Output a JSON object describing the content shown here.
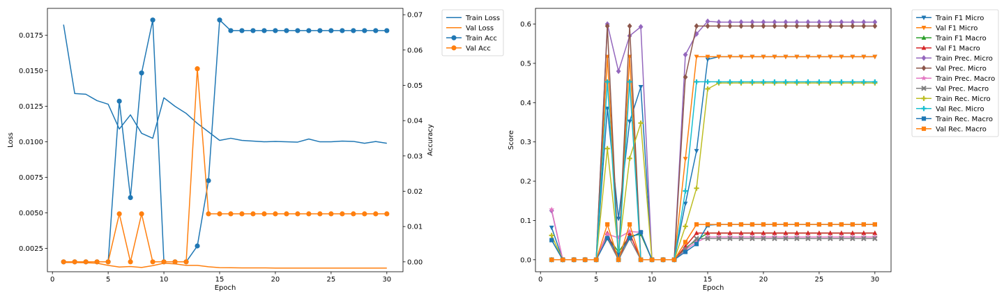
{
  "chart_data": [
    {
      "type": "line",
      "xlabel": "Epoch",
      "ylabel": "Loss",
      "ylabel_right": "Accuracy",
      "xlim": [
        -0.45,
        31.45
      ],
      "ylim": [
        0.00085,
        0.0194
      ],
      "ylim_right": [
        -0.0028,
        0.0718
      ],
      "x_ticks": [
        0,
        5,
        10,
        15,
        20,
        25,
        30
      ],
      "x_tick_labels": [
        "0",
        "5",
        "10",
        "15",
        "20",
        "25",
        "30"
      ],
      "y_ticks": [
        0.0025,
        0.005,
        0.0075,
        0.01,
        0.0125,
        0.015,
        0.0175
      ],
      "y_tick_labels": [
        "0.0025",
        "0.0050",
        "0.0075",
        "0.0100",
        "0.0125",
        "0.0150",
        "0.0175"
      ],
      "y_ticks_right": [
        0.0,
        0.01,
        0.02,
        0.03,
        0.04,
        0.05,
        0.06,
        0.07
      ],
      "y_tick_labels_right": [
        "0.00",
        "0.01",
        "0.02",
        "0.03",
        "0.04",
        "0.05",
        "0.06",
        "0.07"
      ],
      "legend_position": "outside-right",
      "grid": false,
      "x": [
        1,
        2,
        3,
        4,
        5,
        6,
        7,
        8,
        9,
        10,
        11,
        12,
        13,
        14,
        15,
        16,
        17,
        18,
        19,
        20,
        21,
        22,
        23,
        24,
        25,
        26,
        27,
        28,
        29,
        30
      ],
      "series": [
        {
          "name": "Train Loss",
          "axis": "left",
          "color": "#1f77b4",
          "marker": "none",
          "values": [
            0.01825,
            0.0134,
            0.01335,
            0.0129,
            0.01265,
            0.0109,
            0.0119,
            0.0106,
            0.01025,
            0.0131,
            0.0125,
            0.012,
            0.0113,
            0.0107,
            0.0101,
            0.01025,
            0.0101,
            0.01005,
            0.01,
            0.01003,
            0.01,
            0.00998,
            0.0102,
            0.01,
            0.01,
            0.01005,
            0.01003,
            0.0099,
            0.01002,
            0.0099
          ]
        },
        {
          "name": "Val Loss",
          "axis": "left",
          "color": "#ff7f0e",
          "marker": "none",
          "values": [
            0.0015,
            0.0015,
            0.00148,
            0.00145,
            0.0013,
            0.00118,
            0.00122,
            0.00115,
            0.00128,
            0.00145,
            0.0014,
            0.0013,
            0.0013,
            0.0012,
            0.00114,
            0.00113,
            0.00112,
            0.00112,
            0.00112,
            0.00111,
            0.00111,
            0.00111,
            0.00111,
            0.00111,
            0.00111,
            0.00111,
            0.00111,
            0.00111,
            0.00111,
            0.00111
          ]
        },
        {
          "name": "Train Acc",
          "axis": "right",
          "color": "#1f77b4",
          "marker": "circle",
          "values": [
            0,
            0,
            0,
            0,
            0,
            0.0455,
            0.0182,
            0.0535,
            0.0685,
            0,
            0,
            0,
            0.0045,
            0.023,
            0.0685,
            0.0655,
            0.0655,
            0.0655,
            0.0655,
            0.0655,
            0.0655,
            0.0655,
            0.0655,
            0.0655,
            0.0655,
            0.0655,
            0.0655,
            0.0655,
            0.0655,
            0.0655
          ]
        },
        {
          "name": "Val Acc",
          "axis": "right",
          "color": "#ff7f0e",
          "marker": "circle",
          "values": [
            0,
            0,
            0,
            0,
            0,
            0.0136,
            0,
            0.0136,
            0,
            0,
            0,
            0,
            0.0547,
            0.0136,
            0.0136,
            0.0136,
            0.0136,
            0.0136,
            0.0136,
            0.0136,
            0.0136,
            0.0136,
            0.0136,
            0.0136,
            0.0136,
            0.0136,
            0.0136,
            0.0136,
            0.0136,
            0.0136
          ]
        }
      ]
    },
    {
      "type": "line",
      "xlabel": "Epoch",
      "ylabel": "Score",
      "xlim": [
        -0.45,
        31.45
      ],
      "ylim": [
        -0.0305,
        0.64
      ],
      "x_ticks": [
        0,
        5,
        10,
        15,
        20,
        25,
        30
      ],
      "x_tick_labels": [
        "0",
        "5",
        "10",
        "15",
        "20",
        "25",
        "30"
      ],
      "y_ticks": [
        0.0,
        0.1,
        0.2,
        0.3,
        0.4,
        0.5,
        0.6
      ],
      "y_tick_labels": [
        "0.0",
        "0.1",
        "0.2",
        "0.3",
        "0.4",
        "0.5",
        "0.6"
      ],
      "legend_position": "outside-right",
      "grid": false,
      "x": [
        1,
        2,
        3,
        4,
        5,
        6,
        7,
        8,
        9,
        10,
        11,
        12,
        13,
        14,
        15,
        16,
        17,
        18,
        19,
        20,
        21,
        22,
        23,
        24,
        25,
        26,
        27,
        28,
        29,
        30
      ],
      "series": [
        {
          "name": "Train F1 Micro",
          "color": "#1f77b4",
          "marker": "triangle-down",
          "values": [
            0.082,
            0,
            0,
            0,
            0,
            0.385,
            0.105,
            0.352,
            0.44,
            0,
            0,
            0,
            0.143,
            0.277,
            0.51,
            0.517,
            0.517,
            0.517,
            0.517,
            0.517,
            0.517,
            0.517,
            0.517,
            0.517,
            0.517,
            0.517,
            0.517,
            0.517,
            0.517,
            0.517
          ]
        },
        {
          "name": "Val F1 Micro",
          "color": "#ff7f0e",
          "marker": "triangle-down",
          "values": [
            0,
            0,
            0,
            0,
            0,
            0.517,
            0,
            0.517,
            0,
            0,
            0,
            0,
            0.257,
            0.517,
            0.517,
            0.517,
            0.517,
            0.517,
            0.517,
            0.517,
            0.517,
            0.517,
            0.517,
            0.517,
            0.517,
            0.517,
            0.517,
            0.517,
            0.517,
            0.517
          ]
        },
        {
          "name": "Train F1 Macro",
          "color": "#2ca02c",
          "marker": "triangle-up",
          "values": [
            0.05,
            0,
            0,
            0,
            0,
            0.06,
            0.02,
            0.06,
            0.065,
            0,
            0,
            0,
            0.03,
            0.05,
            0.068,
            0.068,
            0.068,
            0.068,
            0.068,
            0.068,
            0.068,
            0.068,
            0.068,
            0.068,
            0.068,
            0.068,
            0.068,
            0.068,
            0.068,
            0.068
          ]
        },
        {
          "name": "Val F1 Macro",
          "color": "#d62728",
          "marker": "triangle-up",
          "values": [
            0,
            0,
            0,
            0,
            0,
            0.068,
            0,
            0.068,
            0,
            0,
            0,
            0,
            0.034,
            0.068,
            0.068,
            0.068,
            0.068,
            0.068,
            0.068,
            0.068,
            0.068,
            0.068,
            0.068,
            0.068,
            0.068,
            0.068,
            0.068,
            0.068,
            0.068,
            0.068
          ]
        },
        {
          "name": "Train Prec. Micro",
          "color": "#9467bd",
          "marker": "diamond",
          "values": [
            0.125,
            0,
            0,
            0,
            0,
            0.6,
            0.48,
            0.57,
            0.593,
            0,
            0,
            0,
            0.522,
            0.575,
            0.607,
            0.605,
            0.605,
            0.605,
            0.605,
            0.605,
            0.605,
            0.605,
            0.605,
            0.605,
            0.605,
            0.605,
            0.605,
            0.605,
            0.605,
            0.605
          ]
        },
        {
          "name": "Val Prec. Micro",
          "color": "#8c564b",
          "marker": "diamond",
          "values": [
            0,
            0,
            0,
            0,
            0,
            0.595,
            0,
            0.595,
            0,
            0,
            0,
            0,
            0.465,
            0.595,
            0.595,
            0.595,
            0.595,
            0.595,
            0.595,
            0.595,
            0.595,
            0.595,
            0.595,
            0.595,
            0.595,
            0.595,
            0.595,
            0.595,
            0.595,
            0.595
          ]
        },
        {
          "name": "Train Prec. Macro",
          "color": "#e377c2",
          "marker": "star",
          "values": [
            0.128,
            0,
            0,
            0,
            0,
            0.065,
            0.056,
            0.072,
            0.07,
            0,
            0,
            0,
            0.025,
            0.045,
            0.058,
            0.058,
            0.058,
            0.058,
            0.058,
            0.058,
            0.058,
            0.058,
            0.058,
            0.058,
            0.058,
            0.058,
            0.058,
            0.058,
            0.058,
            0.058
          ]
        },
        {
          "name": "Val Prec. Macro",
          "color": "#7f7f7f",
          "marker": "x",
          "values": [
            0,
            0,
            0,
            0,
            0,
            0.054,
            0,
            0.054,
            0,
            0,
            0,
            0,
            0.027,
            0.054,
            0.054,
            0.054,
            0.054,
            0.054,
            0.054,
            0.054,
            0.054,
            0.054,
            0.054,
            0.054,
            0.054,
            0.054,
            0.054,
            0.054,
            0.054,
            0.054
          ]
        },
        {
          "name": "Train Rec. Micro",
          "color": "#bcbd22",
          "marker": "plus",
          "values": [
            0.062,
            0,
            0,
            0,
            0,
            0.283,
            0.02,
            0.258,
            0.348,
            0,
            0,
            0,
            0.085,
            0.182,
            0.435,
            0.45,
            0.45,
            0.45,
            0.45,
            0.45,
            0.45,
            0.45,
            0.45,
            0.45,
            0.45,
            0.45,
            0.45,
            0.45,
            0.45,
            0.45
          ]
        },
        {
          "name": "Val Rec. Micro",
          "color": "#17becf",
          "marker": "plus",
          "values": [
            0,
            0,
            0,
            0,
            0,
            0.453,
            0,
            0.453,
            0,
            0,
            0,
            0,
            0.175,
            0.453,
            0.453,
            0.453,
            0.453,
            0.453,
            0.453,
            0.453,
            0.453,
            0.453,
            0.453,
            0.453,
            0.453,
            0.453,
            0.453,
            0.453,
            0.453,
            0.453
          ]
        },
        {
          "name": "Train Rec. Macro",
          "color": "#1f77b4",
          "marker": "square",
          "values": [
            0.05,
            0,
            0,
            0,
            0,
            0.055,
            0.012,
            0.055,
            0.07,
            0,
            0,
            0,
            0.02,
            0.04,
            0.088,
            0.09,
            0.09,
            0.09,
            0.09,
            0.09,
            0.09,
            0.09,
            0.09,
            0.09,
            0.09,
            0.09,
            0.09,
            0.09,
            0.09,
            0.09
          ]
        },
        {
          "name": "Val Rec. Macro",
          "color": "#ff7f0e",
          "marker": "square",
          "values": [
            0,
            0,
            0,
            0,
            0,
            0.09,
            0,
            0.09,
            0,
            0,
            0,
            0,
            0.045,
            0.09,
            0.09,
            0.09,
            0.09,
            0.09,
            0.09,
            0.09,
            0.09,
            0.09,
            0.09,
            0.09,
            0.09,
            0.09,
            0.09,
            0.09,
            0.09,
            0.09
          ]
        }
      ]
    }
  ]
}
